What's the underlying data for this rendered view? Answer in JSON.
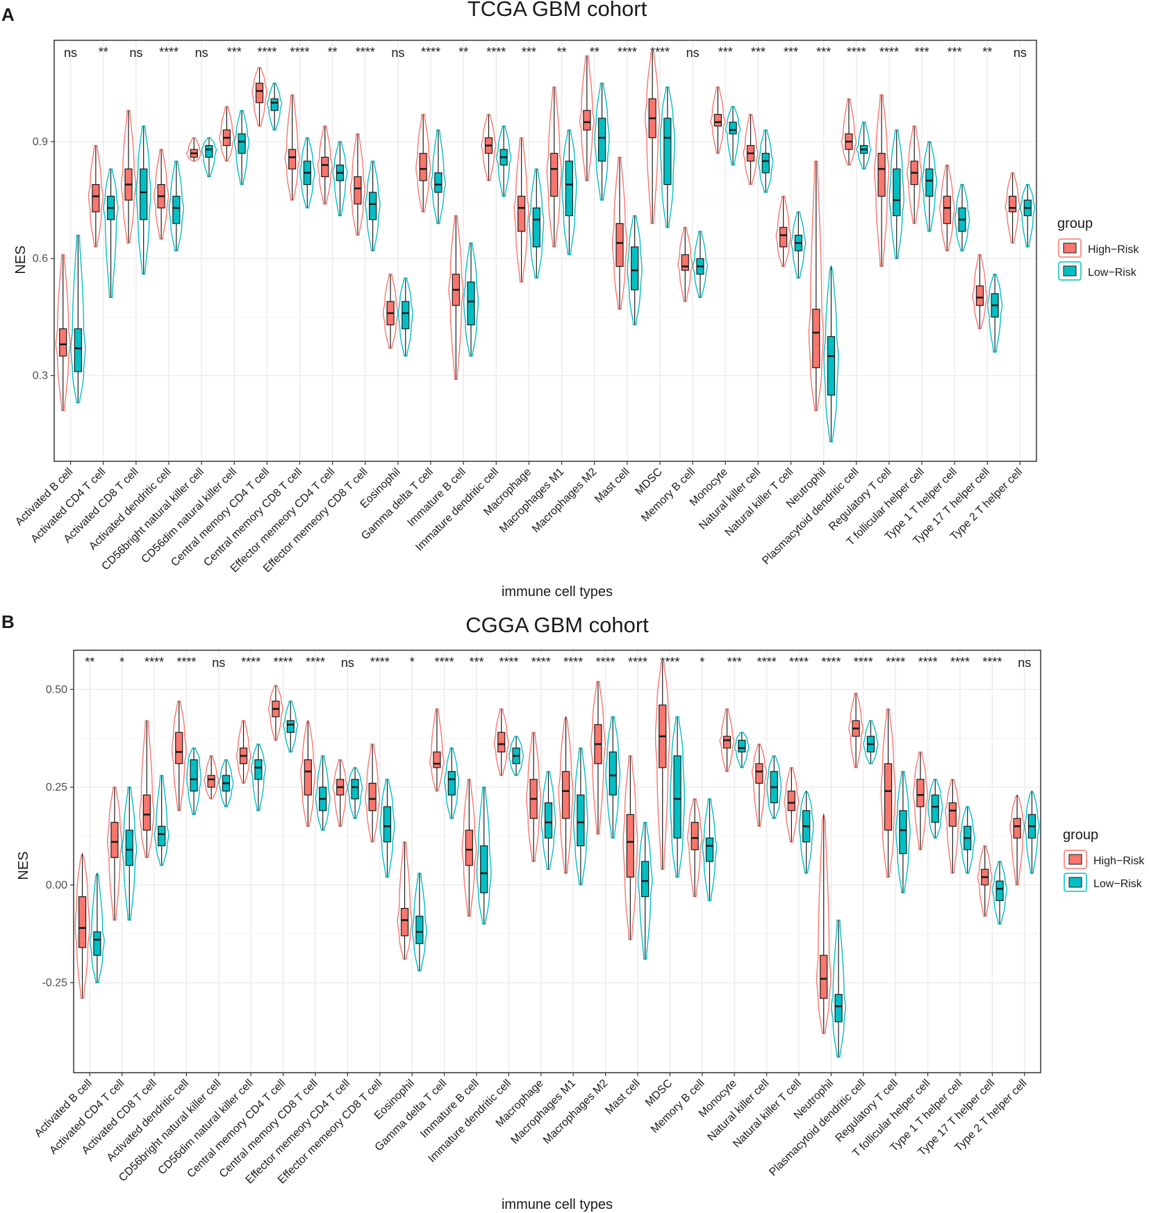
{
  "colors": {
    "high": "#F8766D",
    "low": "#00BFC4",
    "grid": "#EBEBEB",
    "frame": "#333333"
  },
  "legend": {
    "title": "group",
    "items": [
      "High−Risk",
      "Low−Risk"
    ]
  },
  "categories": [
    "Activated B cell",
    "Activated CD4 T cell",
    "Activated CD8 T cell",
    "Activated dendritic cell",
    "CD56bright natural killer cell",
    "CD56dim natural killer cell",
    "Central memory CD4 T cell",
    "Central memory CD8 T cell",
    "Effector memeory CD4 T cell",
    "Effector memeory CD8 T cell",
    "Eosinophil",
    "Gamma delta T cell",
    "Immature  B cell",
    "Immature dendritic cell",
    "Macrophage",
    "Macrophages M1",
    "Macrophages M2",
    "Mast cell",
    "MDSC",
    "Memory B cell",
    "Monocyte",
    "Natural killer cell",
    "Natural killer T cell",
    "Neutrophil",
    "Plasmacytoid dendritic cell",
    "Regulatory T cell",
    "T follicular helper cell",
    "Type 1 T helper cell",
    "Type 17 T helper cell",
    "Type 2 T helper cell"
  ],
  "chart_data": [
    {
      "panel": "A",
      "type": "violin",
      "title": "TCGA GBM cohort",
      "xlabel": "immune cell types",
      "ylabel": "NES",
      "ylim": [
        0.08,
        1.16
      ],
      "yticks": [
        0.3,
        0.6,
        0.9
      ],
      "ytick_labels": [
        "0.3",
        "0.6",
        "0.9"
      ],
      "significance": [
        "ns",
        "**",
        "ns",
        "****",
        "ns",
        "***",
        "****",
        "****",
        "**",
        "****",
        "ns",
        "****",
        "**",
        "****",
        "***",
        "**",
        "**",
        "****",
        "****",
        "ns",
        "***",
        "***",
        "***",
        "***",
        "****",
        "****",
        "***",
        "***",
        "**",
        "ns"
      ],
      "series": [
        {
          "name": "High-Risk",
          "min": [
            0.21,
            0.63,
            0.64,
            0.65,
            0.85,
            0.85,
            0.94,
            0.75,
            0.74,
            0.66,
            0.37,
            0.72,
            0.29,
            0.8,
            0.54,
            0.63,
            0.8,
            0.47,
            0.69,
            0.49,
            0.87,
            0.79,
            0.58,
            0.21,
            0.84,
            0.58,
            0.69,
            0.62,
            0.42,
            0.64
          ],
          "q1": [
            0.35,
            0.72,
            0.75,
            0.73,
            0.86,
            0.89,
            1.0,
            0.83,
            0.81,
            0.74,
            0.43,
            0.8,
            0.48,
            0.87,
            0.67,
            0.76,
            0.93,
            0.58,
            0.91,
            0.57,
            0.94,
            0.85,
            0.63,
            0.32,
            0.88,
            0.76,
            0.79,
            0.69,
            0.48,
            0.72
          ],
          "median": [
            0.38,
            0.76,
            0.79,
            0.76,
            0.87,
            0.91,
            1.03,
            0.86,
            0.84,
            0.78,
            0.46,
            0.83,
            0.52,
            0.89,
            0.73,
            0.83,
            0.95,
            0.64,
            0.96,
            0.58,
            0.95,
            0.87,
            0.66,
            0.41,
            0.9,
            0.83,
            0.82,
            0.73,
            0.5,
            0.73
          ],
          "q3": [
            0.42,
            0.79,
            0.83,
            0.79,
            0.88,
            0.93,
            1.05,
            0.88,
            0.86,
            0.81,
            0.49,
            0.87,
            0.56,
            0.91,
            0.76,
            0.87,
            0.98,
            0.69,
            1.01,
            0.61,
            0.97,
            0.89,
            0.68,
            0.47,
            0.92,
            0.87,
            0.85,
            0.76,
            0.53,
            0.76
          ],
          "max": [
            0.61,
            0.89,
            0.98,
            0.88,
            0.91,
            0.99,
            1.09,
            1.02,
            0.94,
            0.92,
            0.56,
            0.97,
            0.71,
            0.97,
            0.91,
            1.04,
            1.12,
            0.86,
            1.13,
            0.68,
            1.04,
            0.97,
            0.76,
            0.85,
            1.01,
            1.02,
            0.94,
            0.84,
            0.61,
            0.82
          ]
        },
        {
          "name": "Low-Risk",
          "min": [
            0.23,
            0.5,
            0.56,
            0.62,
            0.81,
            0.79,
            0.93,
            0.73,
            0.71,
            0.62,
            0.35,
            0.69,
            0.35,
            0.76,
            0.55,
            0.61,
            0.75,
            0.43,
            0.68,
            0.5,
            0.84,
            0.77,
            0.55,
            0.13,
            0.83,
            0.6,
            0.67,
            0.62,
            0.36,
            0.63
          ],
          "q1": [
            0.31,
            0.7,
            0.7,
            0.69,
            0.86,
            0.87,
            0.98,
            0.79,
            0.8,
            0.7,
            0.42,
            0.77,
            0.43,
            0.84,
            0.63,
            0.71,
            0.85,
            0.52,
            0.79,
            0.56,
            0.92,
            0.82,
            0.62,
            0.25,
            0.87,
            0.71,
            0.76,
            0.67,
            0.45,
            0.71
          ],
          "median": [
            0.37,
            0.73,
            0.77,
            0.73,
            0.88,
            0.9,
            1.0,
            0.82,
            0.82,
            0.74,
            0.46,
            0.79,
            0.49,
            0.86,
            0.7,
            0.79,
            0.91,
            0.57,
            0.91,
            0.58,
            0.93,
            0.85,
            0.64,
            0.35,
            0.88,
            0.75,
            0.8,
            0.7,
            0.48,
            0.73
          ],
          "q3": [
            0.42,
            0.76,
            0.83,
            0.76,
            0.89,
            0.92,
            1.01,
            0.85,
            0.84,
            0.77,
            0.49,
            0.82,
            0.54,
            0.88,
            0.73,
            0.85,
            0.96,
            0.63,
            0.96,
            0.6,
            0.95,
            0.87,
            0.66,
            0.4,
            0.89,
            0.83,
            0.83,
            0.73,
            0.51,
            0.75
          ],
          "max": [
            0.66,
            0.83,
            0.94,
            0.85,
            0.91,
            0.98,
            1.05,
            0.91,
            0.9,
            0.85,
            0.55,
            0.93,
            0.64,
            0.94,
            0.83,
            0.93,
            1.05,
            0.71,
            1.04,
            0.67,
            0.99,
            0.93,
            0.72,
            0.58,
            0.95,
            0.93,
            0.9,
            0.79,
            0.56,
            0.79
          ]
        }
      ]
    },
    {
      "panel": "B",
      "type": "violin",
      "title": "CGGA GBM cohort",
      "xlabel": "immune cell types",
      "ylabel": "NES",
      "ylim": [
        -0.48,
        0.6
      ],
      "yticks": [
        -0.25,
        0.0,
        0.25,
        0.5
      ],
      "ytick_labels": [
        "-0.25",
        "0.00",
        "0.25",
        "0.50"
      ],
      "significance": [
        "**",
        "*",
        "****",
        "****",
        "ns",
        "****",
        "****",
        "****",
        "ns",
        "****",
        "*",
        "****",
        "***",
        "****",
        "****",
        "****",
        "****",
        "****",
        "****",
        "*",
        "***",
        "****",
        "****",
        "****",
        "****",
        "****",
        "****",
        "****",
        "****",
        "ns"
      ],
      "series": [
        {
          "name": "High-Risk",
          "min": [
            -0.29,
            -0.09,
            0.07,
            0.19,
            0.22,
            0.26,
            0.37,
            0.15,
            0.15,
            0.11,
            -0.19,
            0.24,
            -0.08,
            0.28,
            0.06,
            0.03,
            0.13,
            -0.14,
            0.04,
            -0.03,
            0.29,
            0.15,
            0.11,
            -0.38,
            0.3,
            0.02,
            0.09,
            0.03,
            -0.08,
            0.0
          ],
          "q1": [
            -0.16,
            0.07,
            0.14,
            0.31,
            0.25,
            0.31,
            0.43,
            0.23,
            0.23,
            0.19,
            -0.13,
            0.3,
            0.05,
            0.34,
            0.17,
            0.17,
            0.31,
            0.02,
            0.3,
            0.09,
            0.35,
            0.26,
            0.19,
            -0.29,
            0.38,
            0.14,
            0.2,
            0.15,
            0.0,
            0.12
          ],
          "median": [
            -0.11,
            0.11,
            0.18,
            0.34,
            0.27,
            0.33,
            0.45,
            0.29,
            0.25,
            0.22,
            -0.09,
            0.31,
            0.09,
            0.36,
            0.22,
            0.24,
            0.36,
            0.11,
            0.38,
            0.12,
            0.37,
            0.29,
            0.21,
            -0.24,
            0.4,
            0.24,
            0.23,
            0.19,
            0.02,
            0.15
          ],
          "q3": [
            -0.03,
            0.16,
            0.23,
            0.39,
            0.28,
            0.35,
            0.47,
            0.32,
            0.27,
            0.26,
            -0.06,
            0.34,
            0.14,
            0.39,
            0.27,
            0.29,
            0.41,
            0.18,
            0.46,
            0.16,
            0.38,
            0.31,
            0.24,
            -0.18,
            0.42,
            0.31,
            0.27,
            0.21,
            0.04,
            0.17
          ],
          "max": [
            0.08,
            0.25,
            0.42,
            0.47,
            0.33,
            0.42,
            0.51,
            0.42,
            0.32,
            0.36,
            0.11,
            0.45,
            0.27,
            0.45,
            0.39,
            0.43,
            0.52,
            0.33,
            0.57,
            0.22,
            0.45,
            0.36,
            0.3,
            0.18,
            0.49,
            0.45,
            0.34,
            0.27,
            0.1,
            0.23
          ]
        },
        {
          "name": "Low-Risk",
          "min": [
            -0.25,
            -0.09,
            0.05,
            0.18,
            0.2,
            0.19,
            0.34,
            0.14,
            0.17,
            0.02,
            -0.22,
            0.17,
            -0.1,
            0.28,
            0.04,
            0.0,
            0.12,
            -0.19,
            0.02,
            -0.04,
            0.3,
            0.17,
            0.03,
            -0.44,
            0.31,
            -0.02,
            0.12,
            0.03,
            -0.1,
            0.03
          ],
          "q1": [
            -0.18,
            0.05,
            0.1,
            0.24,
            0.24,
            0.27,
            0.39,
            0.19,
            0.22,
            0.11,
            -0.15,
            0.23,
            -0.02,
            0.31,
            0.12,
            0.1,
            0.23,
            -0.03,
            0.12,
            0.06,
            0.34,
            0.21,
            0.11,
            -0.35,
            0.34,
            0.08,
            0.16,
            0.09,
            -0.04,
            0.12
          ],
          "median": [
            -0.14,
            0.09,
            0.13,
            0.27,
            0.26,
            0.3,
            0.41,
            0.22,
            0.25,
            0.15,
            -0.12,
            0.27,
            0.03,
            0.33,
            0.16,
            0.16,
            0.28,
            0.01,
            0.22,
            0.1,
            0.35,
            0.25,
            0.15,
            -0.31,
            0.36,
            0.14,
            0.2,
            0.12,
            -0.01,
            0.15
          ],
          "q3": [
            -0.12,
            0.14,
            0.15,
            0.32,
            0.28,
            0.32,
            0.42,
            0.25,
            0.27,
            0.2,
            -0.08,
            0.29,
            0.1,
            0.35,
            0.21,
            0.23,
            0.34,
            0.06,
            0.33,
            0.12,
            0.37,
            0.29,
            0.19,
            -0.28,
            0.38,
            0.19,
            0.23,
            0.15,
            0.01,
            0.18
          ],
          "max": [
            0.03,
            0.25,
            0.28,
            0.35,
            0.32,
            0.36,
            0.47,
            0.33,
            0.3,
            0.27,
            0.03,
            0.35,
            0.25,
            0.38,
            0.29,
            0.35,
            0.43,
            0.16,
            0.43,
            0.22,
            0.39,
            0.33,
            0.24,
            -0.09,
            0.42,
            0.29,
            0.27,
            0.2,
            0.06,
            0.24
          ]
        }
      ]
    }
  ]
}
